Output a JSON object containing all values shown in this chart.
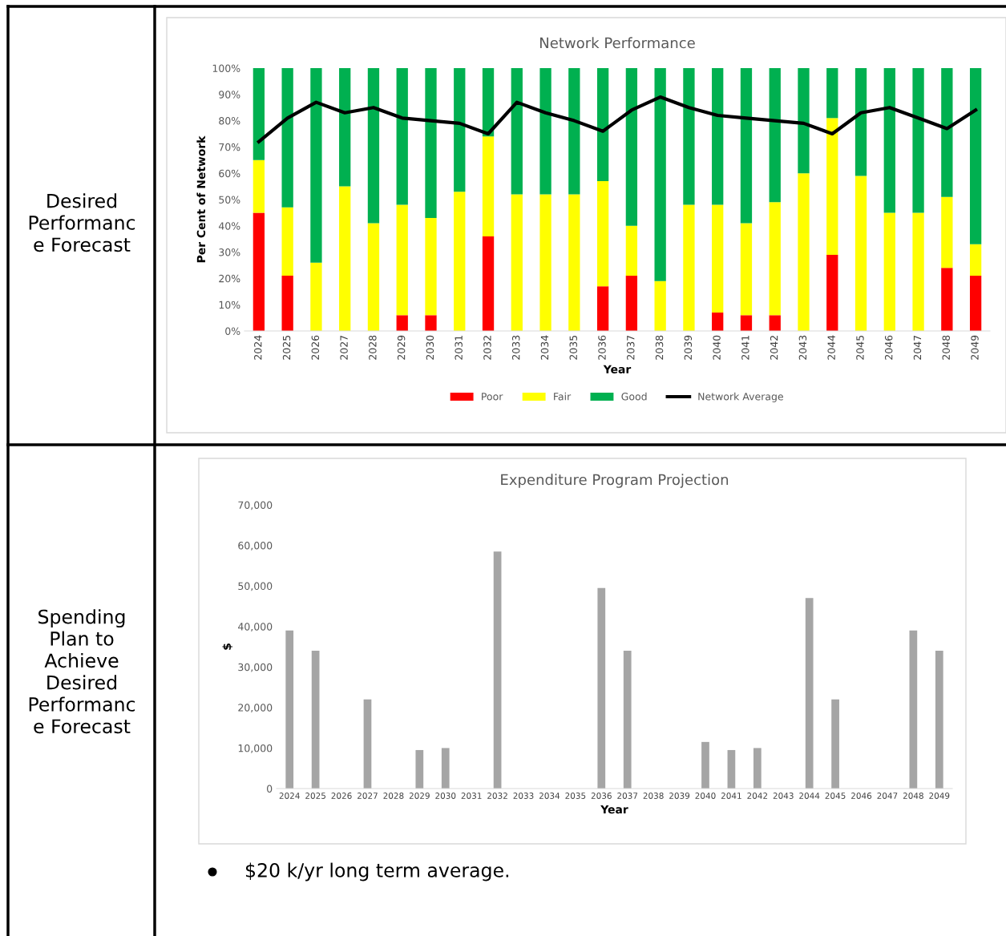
{
  "chart_data": [
    {
      "type": "bar",
      "stacked": true,
      "title": "Network Performance",
      "xlabel": "Year",
      "ylabel": "Per Cent of Network",
      "categories": [
        "2024",
        "2025",
        "2026",
        "2027",
        "2028",
        "2029",
        "2030",
        "2031",
        "2032",
        "2033",
        "2034",
        "2035",
        "2036",
        "2037",
        "2038",
        "2039",
        "2040",
        "2041",
        "2042",
        "2043",
        "2044",
        "2045",
        "2046",
        "2047",
        "2048",
        "2049"
      ],
      "series": [
        {
          "name": "Poor",
          "color": "#ff0000",
          "values": [
            45,
            21,
            0,
            0,
            0,
            6,
            6,
            0,
            36,
            0,
            0,
            0,
            17,
            21,
            0,
            0,
            7,
            6,
            6,
            0,
            29,
            0,
            0,
            0,
            24,
            21
          ]
        },
        {
          "name": "Fair",
          "color": "#ffff00",
          "values": [
            20,
            26,
            26,
            55,
            41,
            42,
            37,
            53,
            38,
            52,
            52,
            52,
            40,
            19,
            19,
            48,
            41,
            35,
            43,
            60,
            52,
            59,
            45,
            45,
            27,
            12
          ]
        },
        {
          "name": "Good",
          "color": "#00b050",
          "values": [
            35,
            53,
            74,
            45,
            59,
            52,
            57,
            47,
            26,
            48,
            48,
            48,
            43,
            60,
            81,
            52,
            52,
            59,
            51,
            40,
            19,
            41,
            55,
            55,
            49,
            67
          ]
        },
        {
          "name": "Network Average",
          "type": "line",
          "color": "#000000",
          "values": [
            72,
            81,
            87,
            83,
            85,
            81,
            80,
            79,
            75,
            87,
            83,
            80,
            76,
            84,
            89,
            85,
            82,
            81,
            80,
            79,
            75,
            83,
            85,
            81,
            77,
            84
          ]
        }
      ],
      "ylim": [
        0,
        100
      ],
      "yticks": [
        {
          "value": 0,
          "label": "0%"
        },
        {
          "value": 10,
          "label": "10%"
        },
        {
          "value": 20,
          "label": "20%"
        },
        {
          "value": 30,
          "label": "30%"
        },
        {
          "value": 40,
          "label": "40%"
        },
        {
          "value": 50,
          "label": "50%"
        },
        {
          "value": 60,
          "label": "60%"
        },
        {
          "value": 70,
          "label": "70%"
        },
        {
          "value": 80,
          "label": "80%"
        },
        {
          "value": 90,
          "label": "90%"
        },
        {
          "value": 100,
          "label": "100%"
        }
      ],
      "grid": false,
      "legend": "bottom",
      "marker": "none",
      "line_style": "solid",
      "annotations": [
        "Desired\nPerformanc\ne Forecast"
      ]
    },
    {
      "type": "bar",
      "title": "Expenditure Program Projection",
      "xlabel": "Year",
      "ylabel": "$",
      "categories": [
        "2024",
        "2025",
        "2026",
        "2027",
        "2028",
        "2029",
        "2030",
        "2031",
        "2032",
        "2033",
        "2034",
        "2035",
        "2036",
        "2037",
        "2038",
        "2039",
        "2040",
        "2041",
        "2042",
        "2043",
        "2044",
        "2045",
        "2046",
        "2047",
        "2048",
        "2049"
      ],
      "values": [
        39000,
        34000,
        0,
        22000,
        0,
        9500,
        10000,
        0,
        58500,
        0,
        0,
        0,
        49500,
        34000,
        0,
        0,
        11500,
        9500,
        10000,
        0,
        47000,
        22000,
        0,
        0,
        39000,
        34000
      ],
      "color": "#a5a5a5",
      "ylim": [
        0,
        70000
      ],
      "yticks": [
        {
          "value": 0,
          "label": "0"
        },
        {
          "value": 10000,
          "label": "10,000"
        },
        {
          "value": 20000,
          "label": "20,000"
        },
        {
          "value": 30000,
          "label": "30,000"
        },
        {
          "value": 40000,
          "label": "40,000"
        },
        {
          "value": 50000,
          "label": "50,000"
        },
        {
          "value": 60000,
          "label": "60,000"
        },
        {
          "value": 70000,
          "label": "70,000"
        }
      ],
      "grid": false,
      "annotations": [
        "Spending\nPlan to\nAchieve\nDesired\nPerformanc\ne Forecast",
        "$20 k/yr long term average."
      ]
    }
  ]
}
